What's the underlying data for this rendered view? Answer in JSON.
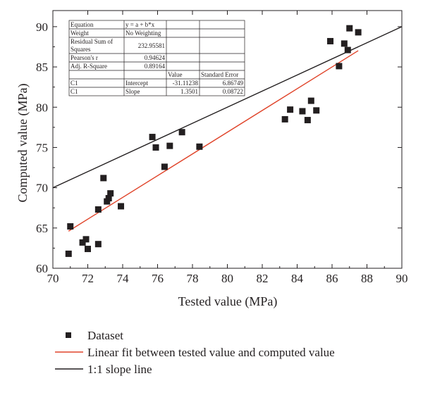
{
  "chart_data": {
    "type": "scatter",
    "xlabel": "Tested value (MPa)",
    "ylabel": "Computed value (MPa)",
    "xlim": [
      70,
      90
    ],
    "ylim": [
      60,
      92
    ],
    "x_ticks": [
      70,
      72,
      74,
      76,
      78,
      80,
      82,
      84,
      86,
      88,
      90
    ],
    "y_ticks": [
      60,
      65,
      70,
      75,
      80,
      85,
      90
    ],
    "x_tick_labels": [
      "70",
      "72",
      "74",
      "76",
      "78",
      "80",
      "82",
      "84",
      "86",
      "88",
      "90"
    ],
    "y_tick_labels": [
      "60",
      "65",
      "70",
      "75",
      "80",
      "85",
      "90"
    ],
    "grid": false,
    "legend_position": "bottom",
    "series": [
      {
        "name": "Dataset",
        "kind": "scatter",
        "marker": "square",
        "color": "#231f20",
        "points": [
          [
            70.9,
            61.8
          ],
          [
            71.0,
            65.2
          ],
          [
            71.7,
            63.2
          ],
          [
            71.9,
            63.6
          ],
          [
            72.0,
            62.4
          ],
          [
            72.6,
            67.3
          ],
          [
            72.6,
            63.0
          ],
          [
            72.9,
            71.2
          ],
          [
            73.1,
            68.3
          ],
          [
            73.2,
            68.7
          ],
          [
            73.3,
            69.3
          ],
          [
            73.9,
            67.7
          ],
          [
            75.7,
            76.3
          ],
          [
            75.9,
            75.0
          ],
          [
            76.4,
            72.6
          ],
          [
            76.7,
            75.2
          ],
          [
            77.4,
            76.9
          ],
          [
            78.4,
            75.1
          ],
          [
            83.3,
            78.5
          ],
          [
            83.6,
            79.7
          ],
          [
            84.3,
            79.5
          ],
          [
            84.6,
            78.4
          ],
          [
            84.8,
            80.8
          ],
          [
            85.1,
            79.6
          ],
          [
            85.9,
            88.2
          ],
          [
            86.4,
            85.1
          ],
          [
            86.7,
            87.9
          ],
          [
            86.9,
            87.1
          ],
          [
            87.0,
            89.8
          ],
          [
            87.5,
            89.3
          ]
        ]
      },
      {
        "name": "Linear fit between tested value and computed value",
        "kind": "line",
        "color": "#e0442a",
        "intercept": -31.11238,
        "slope": 1.3501,
        "x_range": [
          70.9,
          87.5
        ]
      },
      {
        "name": "1:1 slope line",
        "kind": "line",
        "color": "#231f20",
        "intercept": 0,
        "slope": 1,
        "x_range": [
          70,
          90
        ]
      }
    ],
    "stats_table": {
      "rows": [
        [
          "Equation",
          "y = a + b*x",
          "",
          ""
        ],
        [
          "Weight",
          "No Weighting",
          "",
          ""
        ],
        [
          "Residual Sum of Squares",
          "232.95581",
          "",
          ""
        ],
        [
          "Pearson's r",
          "0.94624",
          "",
          ""
        ],
        [
          "Adj. R-Square",
          "0.89164",
          "",
          ""
        ],
        [
          "",
          "",
          "Value",
          "Standard Error"
        ],
        [
          "C1",
          "Intercept",
          "-31.11238",
          "6.86749"
        ],
        [
          "C1",
          "Slope",
          "1.3501",
          "0.08722"
        ]
      ]
    }
  }
}
